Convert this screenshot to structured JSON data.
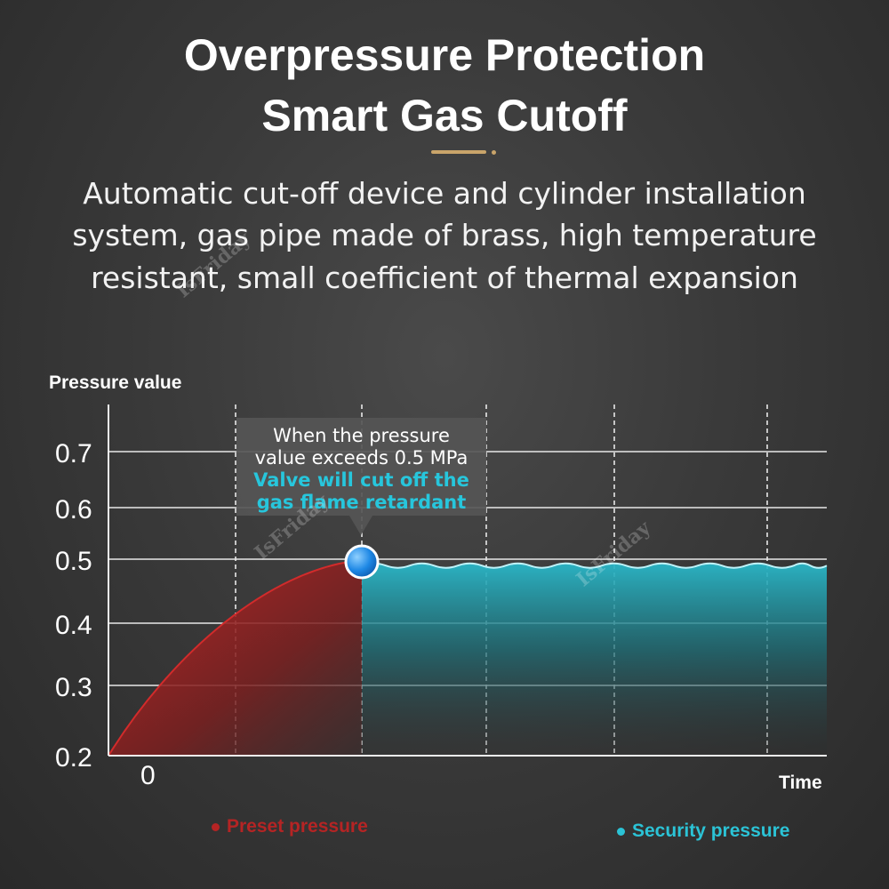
{
  "header": {
    "title_line1": "Overpressure Protection",
    "title_line2": "Smart Gas Cutoff",
    "accent_color": "#c9a46a"
  },
  "description": {
    "line1": "Automatic cut-off device and cylinder installation",
    "line2": "system, gas pipe made of brass, high temperature",
    "line3": "resistant, small coefficient of thermal expansion"
  },
  "callout": {
    "line1": "When the pressure",
    "line2": "value exceeds 0.5 MPa",
    "line3": "Valve will cut off the",
    "line4": "gas flame retardant"
  },
  "legend": {
    "preset": "Preset pressure",
    "security": "Security pressure"
  },
  "watermark": "IsFriday",
  "chart_data": {
    "type": "area",
    "ylabel": "Pressure value",
    "xlabel": "Time",
    "y_ticks": [
      "0.7",
      "0.6",
      "0.5",
      "0.4",
      "0.3",
      "0.2"
    ],
    "x_tick_labels": [
      "0"
    ],
    "ylim": [
      0.2,
      0.7
    ],
    "grid": true,
    "series": [
      {
        "name": "Preset pressure",
        "color": "#b52424",
        "points": [
          [
            0,
            0.2
          ],
          [
            0.25,
            0.33
          ],
          [
            0.5,
            0.41
          ],
          [
            0.75,
            0.465
          ],
          [
            1.0,
            0.495
          ]
        ]
      },
      {
        "name": "Security pressure",
        "color": "#2bc3d6",
        "level": 0.49,
        "wavy": true
      }
    ],
    "threshold": 0.5
  }
}
